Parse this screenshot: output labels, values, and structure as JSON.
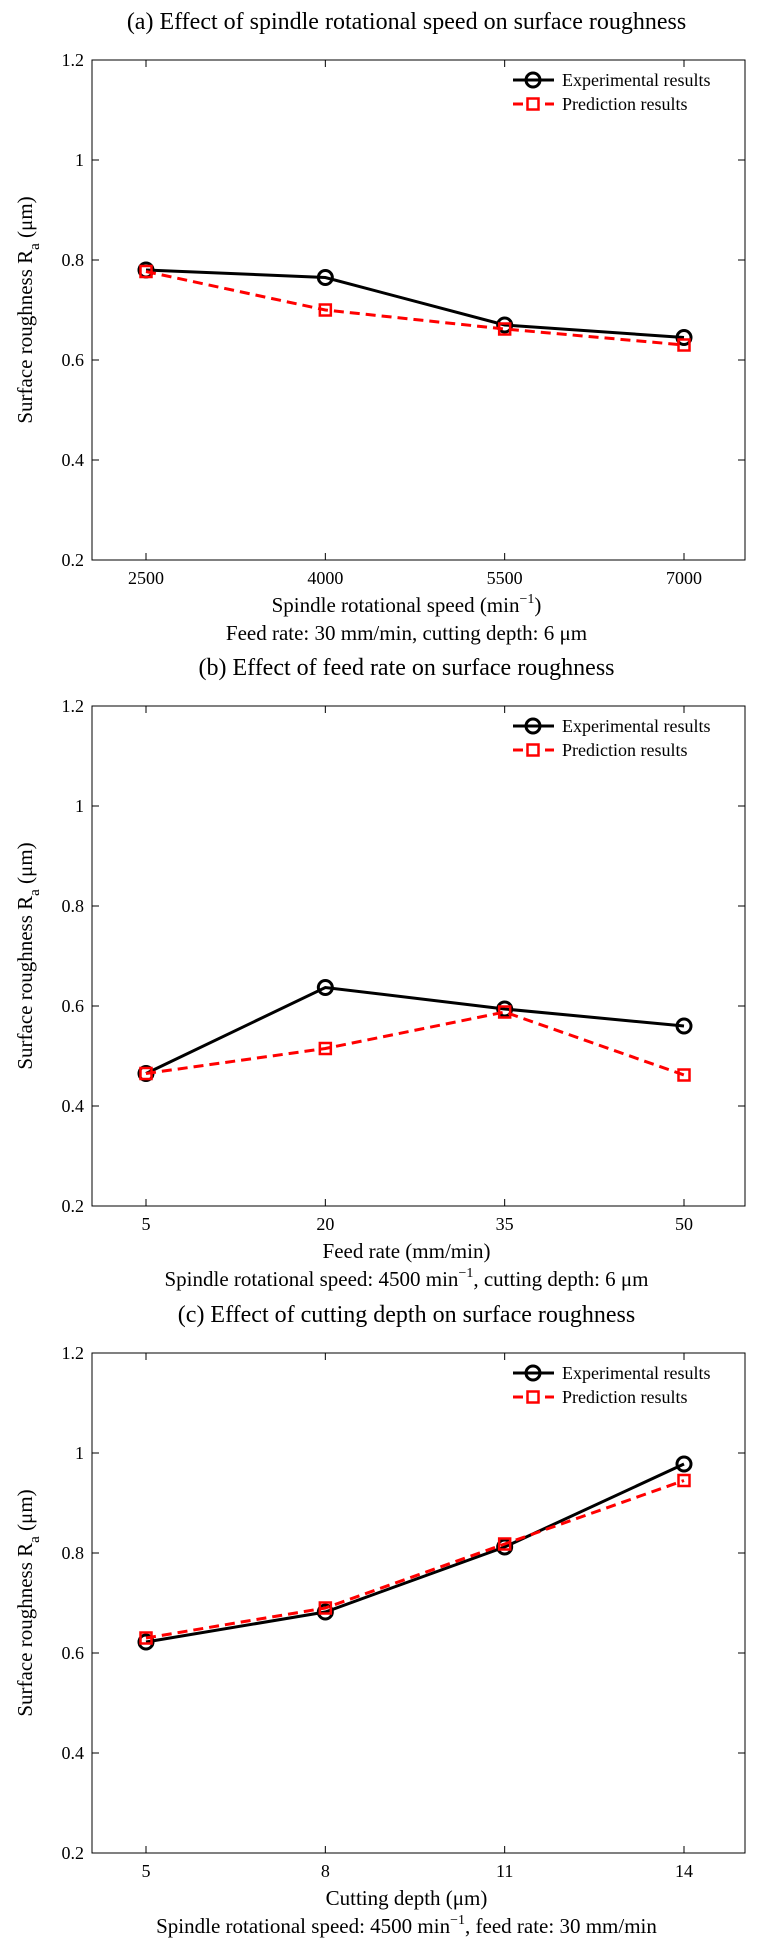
{
  "chart_data": [
    {
      "type": "line",
      "title": "(a) Effect of spindle rotational speed on surface roughness",
      "categories": [
        "2500",
        "4000",
        "5500",
        "7000"
      ],
      "series": [
        {
          "name": "Experimental results",
          "values": [
            0.78,
            0.765,
            0.67,
            0.645
          ],
          "color": "#000000",
          "style": "solid",
          "marker": "circle"
        },
        {
          "name": "Prediction results",
          "values": [
            0.777,
            0.7,
            0.662,
            0.63
          ],
          "color": "#ff0000",
          "style": "dashed",
          "marker": "square"
        }
      ],
      "xlabel_main": "Spindle rotational speed (min",
      "xlabel_sup": "−1",
      "xlabel_tail": ")",
      "ylabel_main": "Surface roughness R",
      "ylabel_sub": "a",
      "ylabel_tail": " (μm)",
      "ylim": [
        0.2,
        1.2
      ],
      "yticks": [
        "0.2",
        "0.4",
        "0.6",
        "0.8",
        "1",
        "1.2"
      ],
      "caption": {
        "pre": "Feed rate: 30 mm/min, cutting depth: 6 μm",
        "sup": "",
        "post": ""
      },
      "legend_position": "top-right",
      "grid": false
    },
    {
      "type": "line",
      "title": "(b) Effect of feed rate on surface roughness",
      "categories": [
        "5",
        "20",
        "35",
        "50"
      ],
      "series": [
        {
          "name": "Experimental results",
          "values": [
            0.465,
            0.637,
            0.594,
            0.56
          ],
          "color": "#000000",
          "style": "solid",
          "marker": "circle"
        },
        {
          "name": "Prediction results",
          "values": [
            0.465,
            0.515,
            0.588,
            0.462
          ],
          "color": "#ff0000",
          "style": "dashed",
          "marker": "square"
        }
      ],
      "xlabel_main": "Feed rate (mm/min)",
      "xlabel_sup": "",
      "xlabel_tail": "",
      "ylabel_main": "Surface roughness R",
      "ylabel_sub": "a",
      "ylabel_tail": " (μm)",
      "ylim": [
        0.2,
        1.2
      ],
      "yticks": [
        "0.2",
        "0.4",
        "0.6",
        "0.8",
        "1",
        "1.2"
      ],
      "caption": {
        "pre": "Spindle rotational speed: 4500 min",
        "sup": "−1",
        "post": ", cutting depth: 6 μm"
      },
      "legend_position": "top-right",
      "grid": false
    },
    {
      "type": "line",
      "title": "(c) Effect of cutting depth on surface roughness",
      "categories": [
        "5",
        "8",
        "11",
        "14"
      ],
      "series": [
        {
          "name": "Experimental results",
          "values": [
            0.622,
            0.682,
            0.812,
            0.978
          ],
          "color": "#000000",
          "style": "solid",
          "marker": "circle"
        },
        {
          "name": "Prediction results",
          "values": [
            0.63,
            0.69,
            0.818,
            0.945
          ],
          "color": "#ff0000",
          "style": "dashed",
          "marker": "square"
        }
      ],
      "xlabel_main": "Cutting depth (μm)",
      "xlabel_sup": "",
      "xlabel_tail": "",
      "ylabel_main": "Surface roughness R",
      "ylabel_sub": "a",
      "ylabel_tail": " (μm)",
      "ylim": [
        0.2,
        1.2
      ],
      "yticks": [
        "0.2",
        "0.4",
        "0.6",
        "0.8",
        "1",
        "1.2"
      ],
      "caption": {
        "pre": "Spindle rotational speed: 4500 min",
        "sup": "−1",
        "post": ", feed rate: 30 mm/min"
      },
      "legend_position": "top-right",
      "grid": false
    }
  ]
}
